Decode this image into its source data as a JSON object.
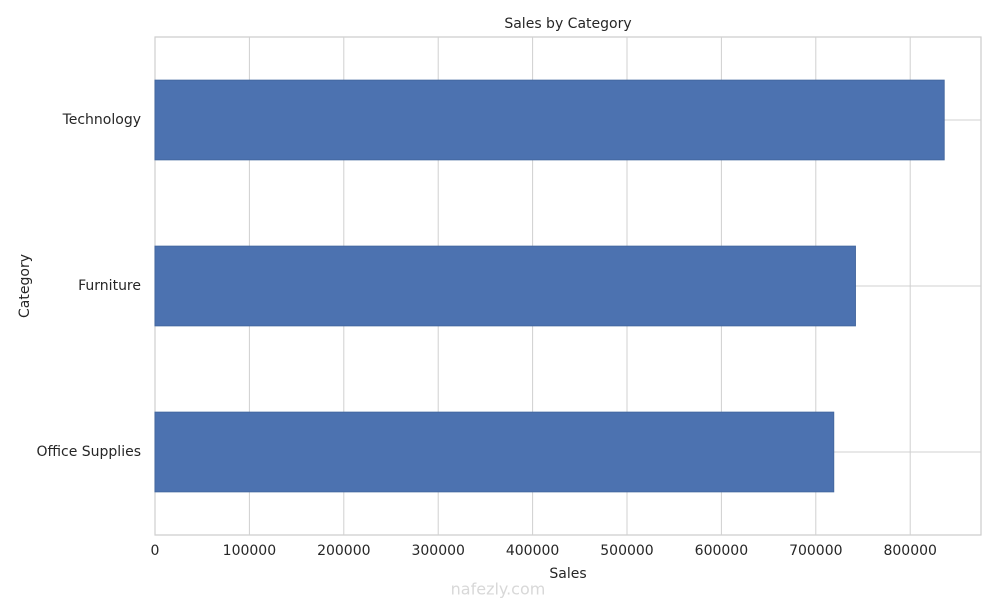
{
  "chart_data": {
    "type": "barh",
    "title": "Sales by Category",
    "x_label": "Sales",
    "y_label": "Category",
    "categories": [
      "Technology",
      "Furniture",
      "Office Supplies"
    ],
    "values": [
      836000,
      742000,
      719000
    ],
    "color": "#4c72b0",
    "xlim": [
      0,
      875000
    ],
    "xticks": [
      0,
      100000,
      200000,
      300000,
      400000,
      500000,
      600000,
      700000,
      800000
    ],
    "grid": true
  },
  "watermark": "nafezly.com"
}
